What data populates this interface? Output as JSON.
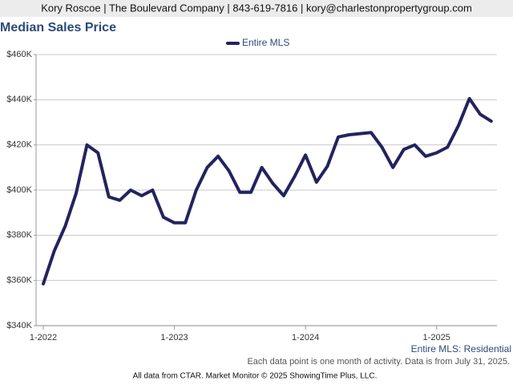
{
  "header": {
    "contact": "Kory Roscoe | The Boulevard Company | 843-619-7816 | kory@charlestonpropertygroup.com"
  },
  "chart_data": {
    "type": "line",
    "title": "Median Sales Price",
    "categories": [
      "1-2022",
      null,
      null,
      null,
      null,
      null,
      null,
      null,
      null,
      null,
      null,
      null,
      "1-2023",
      null,
      null,
      null,
      null,
      null,
      null,
      null,
      null,
      null,
      null,
      null,
      "1-2024",
      null,
      null,
      null,
      null,
      null,
      null,
      null,
      null,
      null,
      null,
      null,
      "1-2025",
      null,
      null,
      null,
      null,
      null
    ],
    "series": [
      {
        "name": "Entire MLS",
        "color": "#23235e",
        "values": [
          358500,
          373000,
          384000,
          398500,
          420000,
          416500,
          397000,
          395500,
          400000,
          397500,
          400000,
          388000,
          385500,
          385500,
          400000,
          410000,
          415000,
          408500,
          399000,
          399000,
          410000,
          403000,
          397500,
          406000,
          415500,
          403500,
          410500,
          423500,
          424500,
          425000,
          425500,
          419000,
          410000,
          418000,
          420000,
          415000,
          416500,
          419000,
          428500,
          440500,
          433500,
          430500
        ]
      }
    ],
    "ylim": [
      340000,
      460000
    ],
    "yticks": [
      {
        "value": 340000,
        "label": "$340K"
      },
      {
        "value": 360000,
        "label": "$360K"
      },
      {
        "value": 380000,
        "label": "$380K"
      },
      {
        "value": 400000,
        "label": "$400K"
      },
      {
        "value": 420000,
        "label": "$420K"
      },
      {
        "value": 440000,
        "label": "$440K"
      },
      {
        "value": 460000,
        "label": "$460K"
      }
    ],
    "grid": true,
    "legend": "top"
  },
  "footer": {
    "segment": "Entire MLS: Residential",
    "note": "Each data point is one month of activity. Data is from July 31, 2025.",
    "source": "All data from CTAR. Market Monitor © 2025 ShowingTime Plus, LLC."
  }
}
